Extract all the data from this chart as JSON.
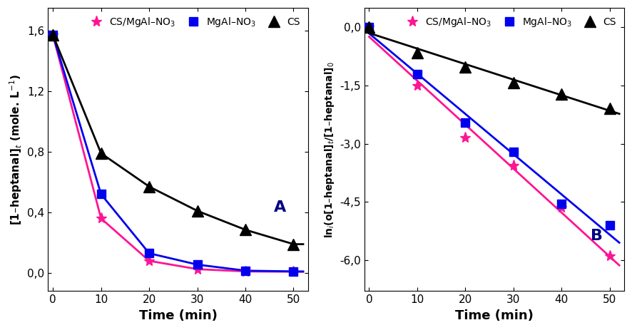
{
  "panel_A": {
    "time": [
      0,
      10,
      20,
      30,
      40,
      50
    ],
    "CS_MgAl_NO3": [
      1.57,
      0.36,
      0.08,
      0.025,
      0.01,
      0.008
    ],
    "MgAl_NO3": [
      1.57,
      0.52,
      0.13,
      0.055,
      0.015,
      0.01
    ],
    "CS": [
      1.57,
      0.79,
      0.57,
      0.41,
      0.285,
      0.19
    ],
    "ylabel": "[1–heptanal]$_t$ (mole. L$^{-1}$)",
    "xlabel": "Time (min)",
    "ylim": [
      -0.12,
      1.75
    ],
    "yticks": [
      0.0,
      0.4,
      0.8,
      1.2,
      1.6
    ],
    "ytick_labels": [
      "0,0",
      "0,4",
      "0,8",
      "1,2",
      "1,6"
    ],
    "xticks": [
      0,
      10,
      20,
      30,
      40,
      50
    ],
    "label": "A"
  },
  "panel_B": {
    "time": [
      0,
      10,
      20,
      30,
      40,
      50
    ],
    "CS_MgAl_NO3": [
      0.0,
      -1.5,
      -2.85,
      -3.55,
      -4.65,
      -5.9
    ],
    "MgAl_NO3": [
      0.0,
      -1.2,
      -2.45,
      -3.2,
      -4.55,
      -5.1
    ],
    "CS": [
      0.0,
      -0.65,
      -1.02,
      -1.42,
      -1.72,
      -2.08
    ],
    "ylabel": "ln$_i$(o[1–heptanal]$_t$/[1–heptanal]$_0$",
    "xlabel": "Time (min)",
    "ylim": [
      -6.8,
      0.5
    ],
    "yticks": [
      0.0,
      -1.5,
      -3.0,
      -4.5,
      -6.0
    ],
    "ytick_labels": [
      "0,0",
      "-1,5",
      "-3,0",
      "-4,5",
      "-6,0"
    ],
    "xticks": [
      0,
      10,
      20,
      30,
      40,
      50
    ],
    "label": "B"
  },
  "colors": {
    "CS_MgAl_NO3": "#FF1493",
    "MgAl_NO3": "#0000EE",
    "CS": "#000000"
  },
  "legend_labels": [
    "CS/MgAl–NO$_3$",
    "MgAl–NO$_3$",
    "CS"
  ],
  "marker_sizes": {
    "CS_MgAl_NO3": 11,
    "MgAl_NO3": 9,
    "CS": 11
  }
}
